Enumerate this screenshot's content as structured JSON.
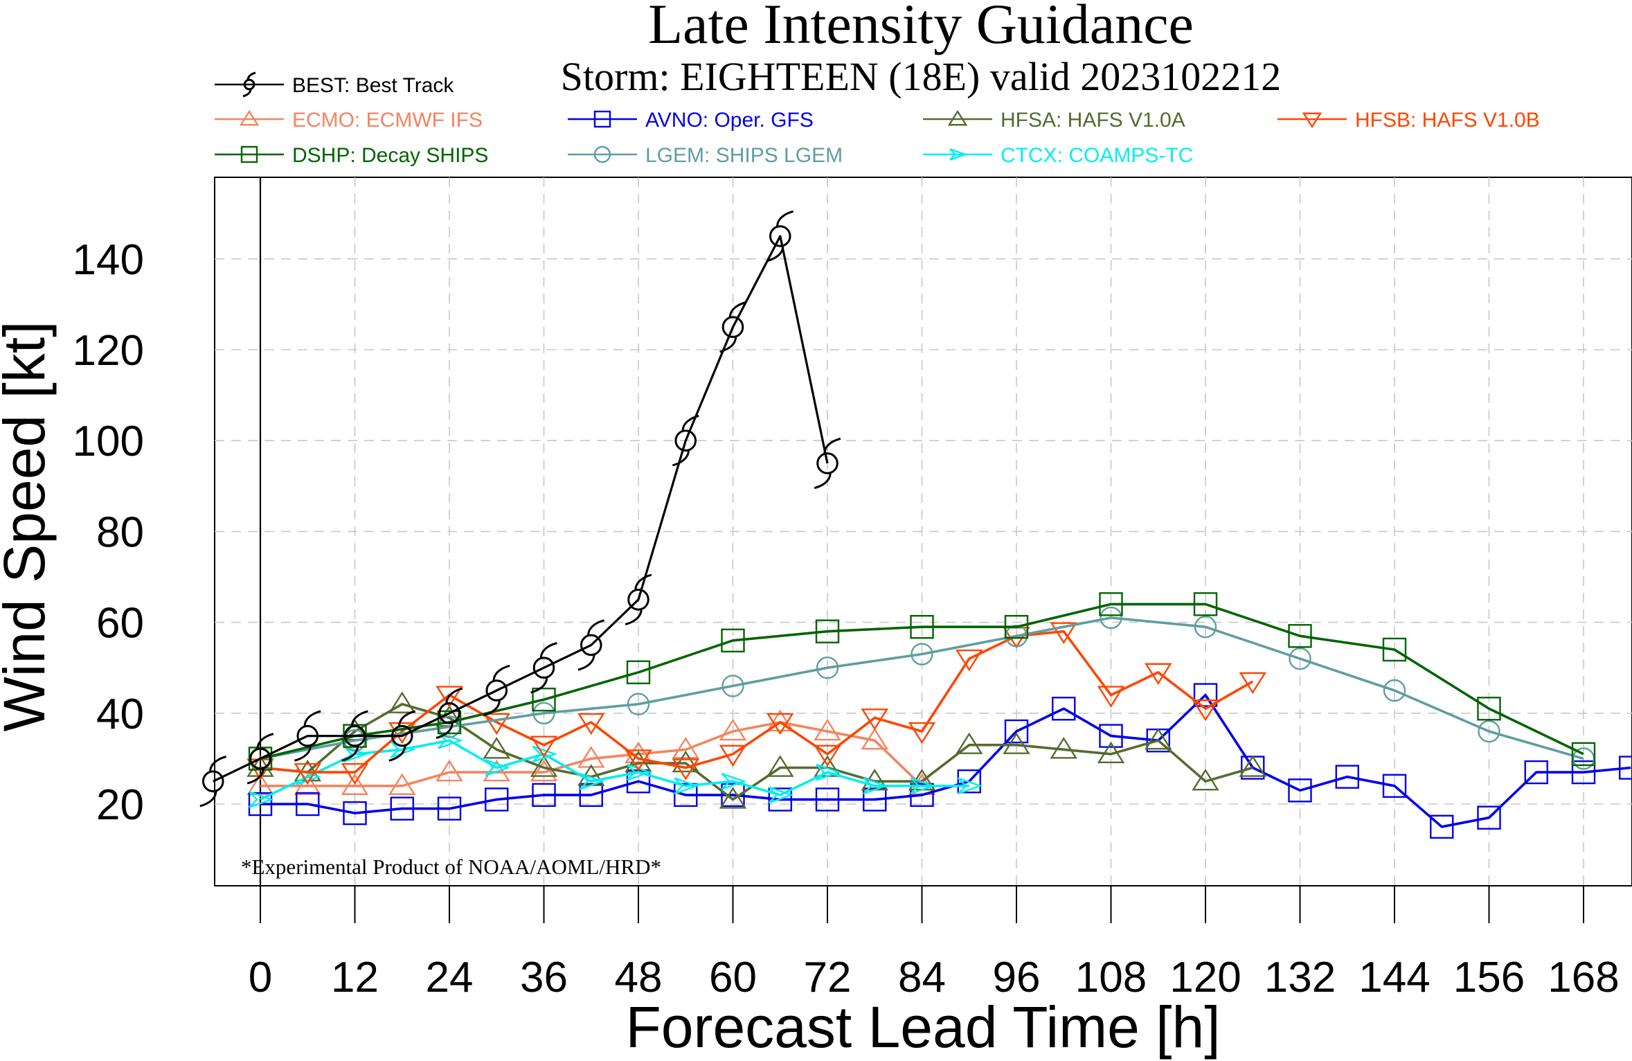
{
  "chart_data": {
    "type": "line",
    "title": "Late Intensity Guidance",
    "subtitle": "Storm: EIGHTEEN (18E) valid 2023102212",
    "xlabel": "Forecast Lead Time [h]",
    "ylabel": "Wind Speed [kt]",
    "xlim": [
      -6,
      174
    ],
    "ylim": [
      5,
      160
    ],
    "xticks": [
      0,
      12,
      24,
      36,
      48,
      60,
      72,
      84,
      96,
      108,
      120,
      132,
      144,
      156,
      168
    ],
    "yticks": [
      20,
      40,
      60,
      80,
      100,
      120,
      140
    ],
    "grid": true,
    "legend_placement": "top",
    "footnote": "*Experimental Product of NOAA/AOML/HRD*",
    "series": [
      {
        "name": "BEST: Best Track",
        "color": "#000000",
        "marker": "hurricane-symbol",
        "x": [
          -6,
          0,
          6,
          12,
          18,
          24,
          30,
          36,
          42,
          48,
          54,
          60,
          66,
          72
        ],
        "y": [
          25,
          30,
          35,
          35,
          35,
          40,
          45,
          50,
          55,
          65,
          100,
          125,
          145,
          95
        ]
      },
      {
        "name": "ECMO: ECMWF IFS",
        "color": "#f4845f",
        "marker": "triangle-up",
        "x": [
          0,
          6,
          12,
          18,
          24,
          30,
          36,
          42,
          48,
          54,
          60,
          66,
          72,
          78,
          84
        ],
        "y": [
          24,
          24,
          24,
          24,
          27,
          27,
          27,
          30,
          31,
          32,
          36,
          38,
          36,
          34,
          24
        ]
      },
      {
        "name": "AVNO: Oper. GFS",
        "color": "#0000ee",
        "marker": "square",
        "x": [
          0,
          6,
          12,
          18,
          24,
          30,
          36,
          42,
          48,
          54,
          60,
          66,
          72,
          78,
          84,
          90,
          96,
          102,
          108,
          114,
          120,
          126,
          132,
          138,
          144,
          150,
          156,
          162,
          168,
          174
        ],
        "y": [
          20,
          20,
          18,
          19,
          19,
          21,
          22,
          22,
          25,
          22,
          22,
          21,
          21,
          21,
          22,
          25,
          36,
          41,
          35,
          34,
          44,
          28,
          23,
          26,
          24,
          15,
          17,
          27,
          27,
          28
        ]
      },
      {
        "name": "HFSA: HAFS V1.0A",
        "color": "#556b2f",
        "marker": "triangle-up",
        "x": [
          0,
          6,
          12,
          18,
          24,
          30,
          36,
          42,
          48,
          54,
          60,
          66,
          72,
          78,
          84,
          90,
          96,
          102,
          108,
          114,
          120,
          126
        ],
        "y": [
          28,
          27,
          36,
          42,
          39,
          32,
          28,
          26,
          29,
          29,
          21,
          28,
          28,
          25,
          25,
          33,
          33,
          32,
          31,
          34,
          25,
          28
        ]
      },
      {
        "name": "HFSB: HAFS V1.0B",
        "color": "#ff4500",
        "marker": "triangle-down",
        "x": [
          0,
          6,
          12,
          18,
          24,
          30,
          36,
          42,
          48,
          54,
          60,
          66,
          72,
          78,
          84,
          90,
          96,
          102,
          108,
          114,
          120,
          126
        ],
        "y": [
          28,
          27,
          27,
          36,
          44,
          38,
          33,
          38,
          30,
          28,
          31,
          38,
          31,
          39,
          36,
          52,
          57,
          58,
          44,
          49,
          41,
          47
        ]
      },
      {
        "name": "DSHP: Decay SHIPS",
        "color": "#006400",
        "marker": "square",
        "x": [
          0,
          12,
          24,
          36,
          48,
          60,
          72,
          84,
          96,
          108,
          120,
          132,
          144,
          156,
          168
        ],
        "y": [
          30,
          35,
          38,
          43,
          49,
          56,
          58,
          59,
          59,
          64,
          64,
          57,
          54,
          41,
          31
        ]
      },
      {
        "name": "LGEM: SHIPS LGEM",
        "color": "#5f9ea0",
        "marker": "circle",
        "x": [
          0,
          12,
          24,
          36,
          48,
          60,
          72,
          84,
          96,
          108,
          120,
          132,
          144,
          156,
          168
        ],
        "y": [
          30,
          34,
          37,
          40,
          42,
          46,
          50,
          53,
          57,
          61,
          59,
          52,
          45,
          36,
          30
        ]
      },
      {
        "name": "CTCX: COAMPS-TC",
        "color": "#00eeee",
        "marker": "arrow-right",
        "x": [
          0,
          6,
          12,
          18,
          24,
          30,
          36,
          42,
          48,
          54,
          60,
          66,
          72,
          78,
          84,
          90
        ],
        "y": [
          21,
          26,
          31,
          32,
          34,
          28,
          31,
          25,
          27,
          24,
          25,
          22,
          27,
          24,
          24,
          24
        ]
      }
    ]
  }
}
